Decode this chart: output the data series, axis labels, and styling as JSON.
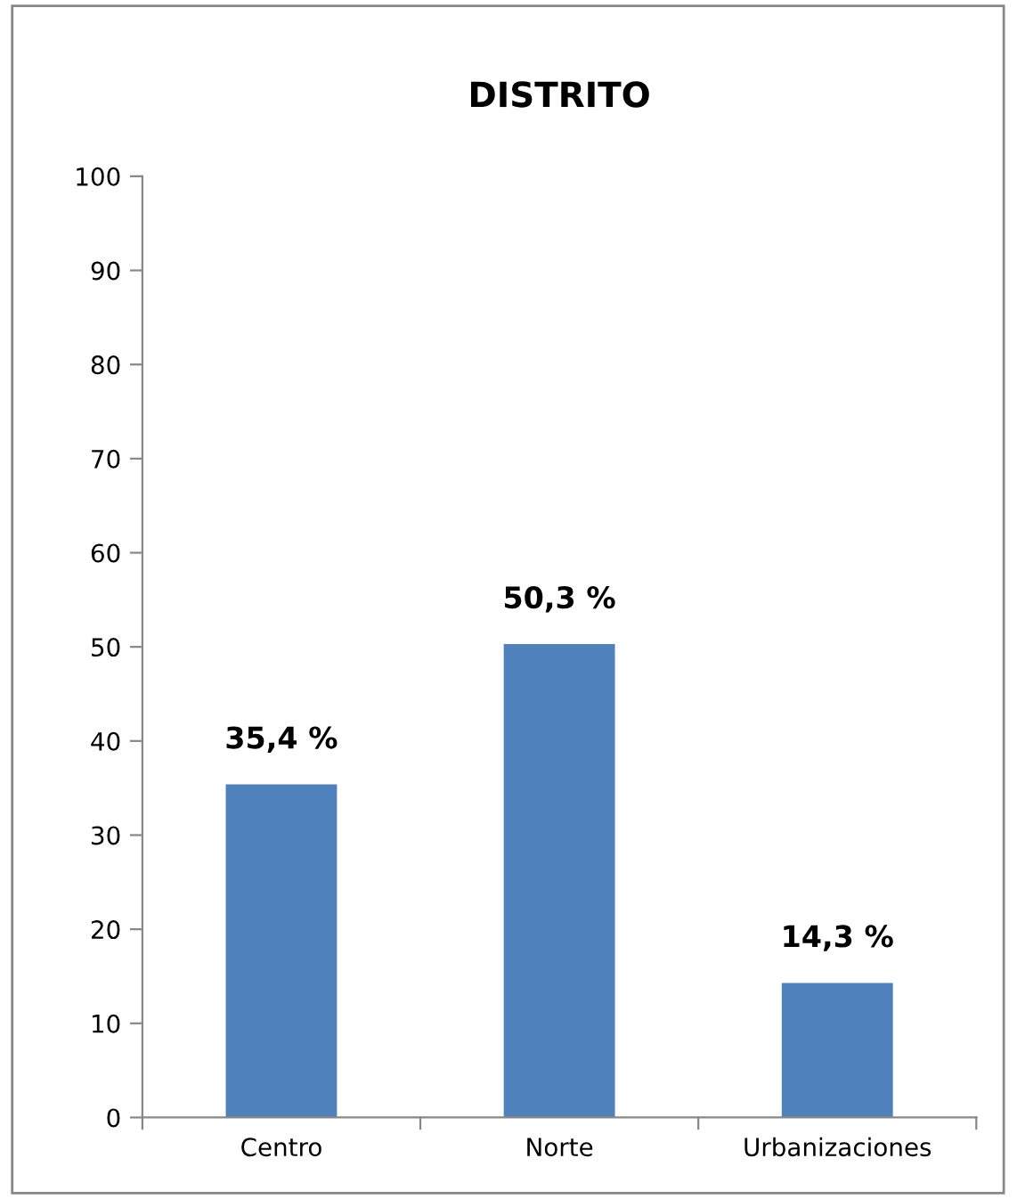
{
  "chart_data": {
    "type": "bar",
    "title": "DISTRITO",
    "categories": [
      "Centro",
      "Norte",
      "Urbanizaciones"
    ],
    "values": [
      35.4,
      50.3,
      14.3
    ],
    "value_labels": [
      "35,4 %",
      "50,3 %",
      "14,3 %"
    ],
    "color": "#4f81bd",
    "ylim": [
      0,
      100
    ],
    "yticks": [
      0,
      10,
      20,
      30,
      40,
      50,
      60,
      70,
      80,
      90,
      100
    ],
    "grid": false,
    "legend": false
  }
}
